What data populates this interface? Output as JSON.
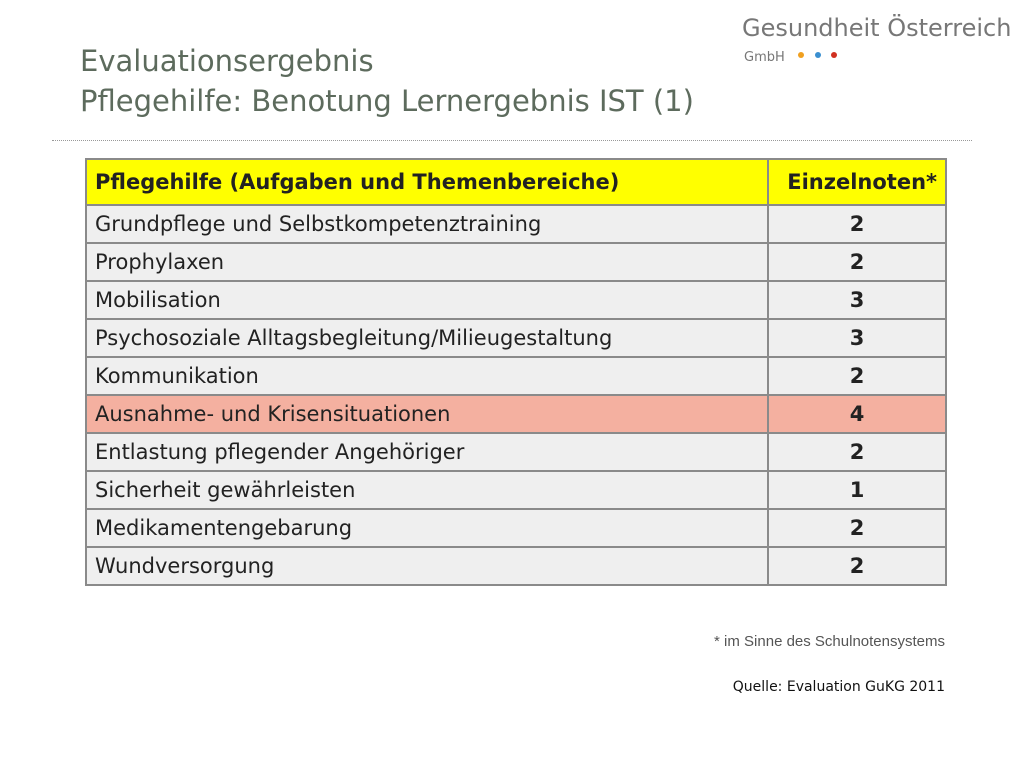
{
  "header": {
    "title_line1": "Evaluationsergebnis",
    "title_line2": "Pflegehilfe: Benotung Lernergebnis IST (1)"
  },
  "logo": {
    "name": "Gesundheit Österreich",
    "suffix": "GmbH"
  },
  "table": {
    "columns": [
      "Pflegehilfe (Aufgaben und Themenbereiche)",
      "Einzelnoten*"
    ],
    "header_color": "#ffff00",
    "rows": [
      [
        "Grundpflege und Selbstkompetenztraining",
        2
      ],
      [
        "Prophylaxen",
        2
      ],
      [
        "Mobilisation",
        3
      ],
      [
        "Psychosoziale Alltagsbegleitung/Milieugestaltung",
        3
      ],
      [
        "Kommunikation",
        2
      ],
      [
        "Ausnahme- und Krisensituationen",
        4
      ],
      [
        "Entlastung pflegender Angehöriger",
        2
      ],
      [
        "Sicherheit gewährleisten",
        1
      ],
      [
        "Medikamentengebarung",
        2
      ],
      [
        "Wundversorgung",
        2
      ]
    ],
    "highlighted_row": 5,
    "highlight_color": "#f4b0a0"
  },
  "footnote": "* im Sinne des Schulnotensystems",
  "source": "Quelle: Evaluation GuKG 2011"
}
